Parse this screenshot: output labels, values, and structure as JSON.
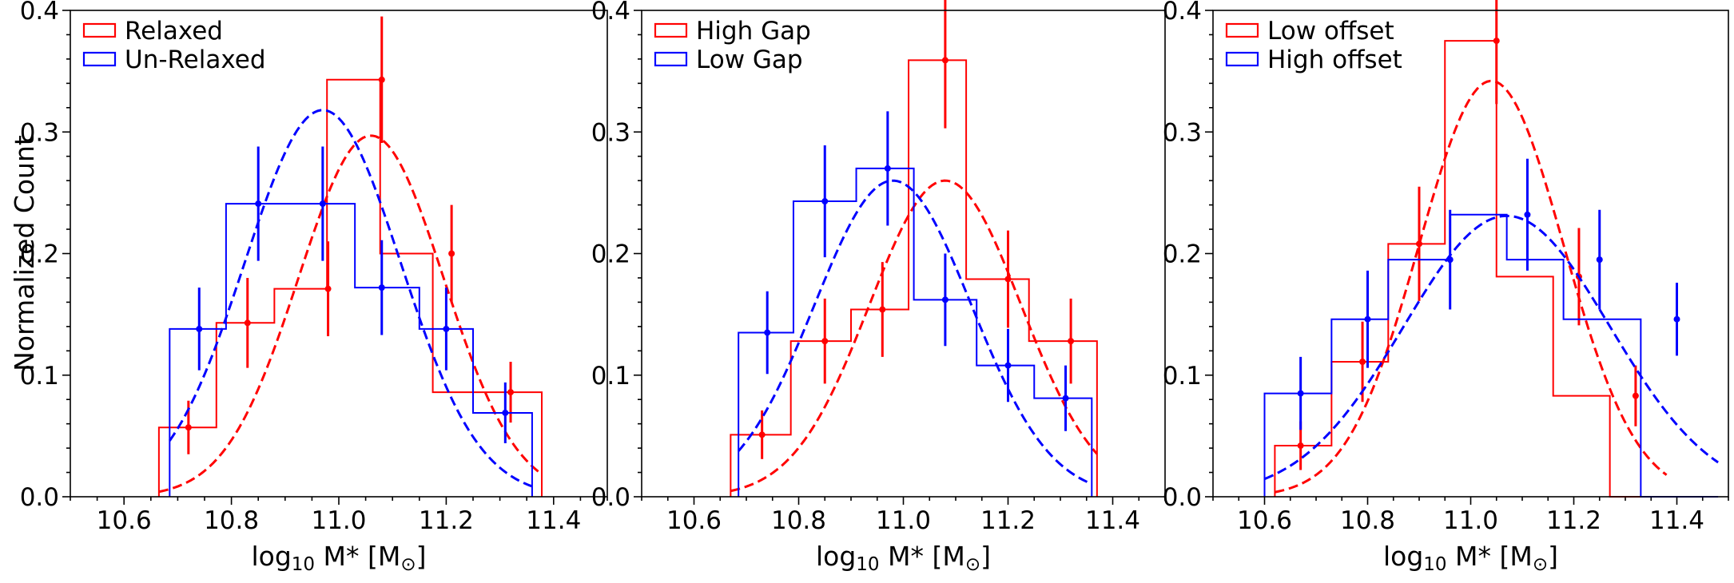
{
  "figure": {
    "ylabel": "Normalized Count"
  },
  "colors": {
    "red": "#ff0000",
    "blue": "#0000ff",
    "axis": "#000000"
  },
  "chart_data": [
    {
      "type": "bar",
      "title": "",
      "xlabel_main": "log",
      "xlabel_sub": "10",
      "xlabel_rest": " M* [M",
      "xlabel_sun": "⊙",
      "xlabel_close": "]",
      "ylabel": "Normalized Count",
      "xlim": [
        10.5,
        11.5
      ],
      "ylim": [
        0.0,
        0.4
      ],
      "xticks": [
        "10.6",
        "10.8",
        "11.0",
        "11.2",
        "11.4"
      ],
      "yticks": [
        "0.0",
        "0.1",
        "0.2",
        "0.3",
        "0.4"
      ],
      "legend": [
        {
          "label": "Relaxed",
          "color": "red"
        },
        {
          "label": "Un-Relaxed",
          "color": "blue"
        }
      ],
      "series": [
        {
          "name": "Relaxed",
          "color": "red",
          "bin_edges": [
            10.665,
            10.772,
            10.88,
            10.978,
            11.077,
            11.175,
            11.274,
            11.378
          ],
          "values": [
            0.057,
            0.143,
            0.171,
            0.343,
            0.2,
            0.086,
            0.086
          ],
          "points": [
            [
              10.72,
              0.057,
              0.022
            ],
            [
              10.83,
              0.143,
              0.037
            ],
            [
              10.98,
              0.171,
              0.039
            ],
            [
              11.08,
              0.343,
              0.052
            ],
            [
              11.21,
              0.2,
              0.04
            ],
            [
              11.32,
              0.086,
              0.025
            ]
          ],
          "fit": {
            "mean": 11.06,
            "sigma": 0.135,
            "amp": 0.297
          }
        },
        {
          "name": "Un-Relaxed",
          "color": "blue",
          "bin_edges": [
            10.685,
            10.79,
            10.9,
            11.03,
            11.15,
            11.25,
            11.36
          ],
          "values": [
            0.138,
            0.241,
            0.241,
            0.172,
            0.138,
            0.069
          ],
          "points": [
            [
              10.74,
              0.138,
              0.034
            ],
            [
              10.85,
              0.241,
              0.047
            ],
            [
              10.97,
              0.241,
              0.047
            ],
            [
              11.08,
              0.172,
              0.039
            ],
            [
              11.2,
              0.138,
              0.034
            ],
            [
              11.31,
              0.069,
              0.025
            ]
          ],
          "fit": {
            "mean": 10.97,
            "sigma": 0.145,
            "amp": 0.318
          }
        }
      ]
    },
    {
      "type": "bar",
      "title": "",
      "xlabel_main": "log",
      "xlabel_sub": "10",
      "xlabel_rest": " M* [M",
      "xlabel_sun": "⊙",
      "xlabel_close": "]",
      "ylabel": "",
      "xlim": [
        10.5,
        11.5
      ],
      "ylim": [
        0.0,
        0.4
      ],
      "xticks": [
        "10.6",
        "10.8",
        "11.0",
        "11.2",
        "11.4"
      ],
      "yticks": [
        "0.0",
        "0.1",
        "0.2",
        "0.3",
        "0.4"
      ],
      "legend": [
        {
          "label": "High Gap",
          "color": "red"
        },
        {
          "label": "Low Gap",
          "color": "blue"
        }
      ],
      "series": [
        {
          "name": "High Gap",
          "color": "red",
          "bin_edges": [
            10.67,
            10.785,
            10.9,
            11.01,
            11.12,
            11.24,
            11.37
          ],
          "values": [
            0.051,
            0.128,
            0.154,
            0.359,
            0.179,
            0.128
          ],
          "points": [
            [
              10.73,
              0.051,
              0.02
            ],
            [
              10.85,
              0.128,
              0.035
            ],
            [
              10.96,
              0.154,
              0.039
            ],
            [
              11.08,
              0.359,
              0.056
            ],
            [
              11.2,
              0.179,
              0.04
            ],
            [
              11.32,
              0.128,
              0.035
            ]
          ],
          "fit": {
            "mean": 11.08,
            "sigma": 0.145,
            "amp": 0.26
          }
        },
        {
          "name": "Low Gap",
          "color": "blue",
          "bin_edges": [
            10.685,
            10.79,
            10.91,
            11.02,
            11.14,
            11.25,
            11.36
          ],
          "values": [
            0.135,
            0.243,
            0.27,
            0.162,
            0.108,
            0.081
          ],
          "points": [
            [
              10.74,
              0.135,
              0.034
            ],
            [
              10.85,
              0.243,
              0.046
            ],
            [
              10.97,
              0.27,
              0.047
            ],
            [
              11.08,
              0.162,
              0.038
            ],
            [
              11.2,
              0.108,
              0.03
            ],
            [
              11.31,
              0.081,
              0.027
            ]
          ],
          "fit": {
            "mean": 10.98,
            "sigma": 0.15,
            "amp": 0.26
          }
        }
      ]
    },
    {
      "type": "bar",
      "title": "",
      "xlabel_main": "log",
      "xlabel_sub": "10",
      "xlabel_rest": " M* [M",
      "xlabel_sun": "⊙",
      "xlabel_close": "]",
      "ylabel": "",
      "xlim": [
        10.5,
        11.5
      ],
      "ylim": [
        0.0,
        0.4
      ],
      "xticks": [
        "10.6",
        "10.8",
        "11.0",
        "11.2",
        "11.4"
      ],
      "yticks": [
        "0.0",
        "0.1",
        "0.2",
        "0.3",
        "0.4"
      ],
      "legend": [
        {
          "label": "Low offset",
          "color": "red"
        },
        {
          "label": "High offset",
          "color": "blue"
        }
      ],
      "series": [
        {
          "name": "Low offset",
          "color": "red",
          "bin_edges": [
            10.62,
            10.73,
            10.84,
            10.95,
            11.05,
            11.16,
            11.27,
            11.38
          ],
          "values": [
            0.042,
            0.111,
            0.208,
            0.375,
            0.181,
            0.083,
            0.0
          ],
          "points": [
            [
              10.67,
              0.042,
              0.02
            ],
            [
              10.79,
              0.111,
              0.033
            ],
            [
              10.9,
              0.208,
              0.047
            ],
            [
              11.05,
              0.375,
              0.052
            ],
            [
              11.21,
              0.181,
              0.04
            ],
            [
              11.32,
              0.083,
              0.025
            ]
          ],
          "fit": {
            "mean": 11.04,
            "sigma": 0.14,
            "amp": 0.342
          }
        },
        {
          "name": "High offset",
          "color": "blue",
          "bin_edges": [
            10.6,
            10.73,
            10.84,
            10.96,
            11.07,
            11.18,
            11.33,
            11.48
          ],
          "values": [
            0.085,
            0.146,
            0.195,
            0.232,
            0.195,
            0.146,
            0.0
          ],
          "points": [
            [
              10.67,
              0.085,
              0.03
            ],
            [
              10.8,
              0.146,
              0.04
            ],
            [
              10.96,
              0.195,
              0.041
            ],
            [
              11.11,
              0.232,
              0.046
            ],
            [
              11.25,
              0.195,
              0.041
            ],
            [
              11.4,
              0.146,
              0.03
            ]
          ],
          "fit": {
            "mean": 11.07,
            "sigma": 0.2,
            "amp": 0.231
          }
        }
      ]
    }
  ]
}
